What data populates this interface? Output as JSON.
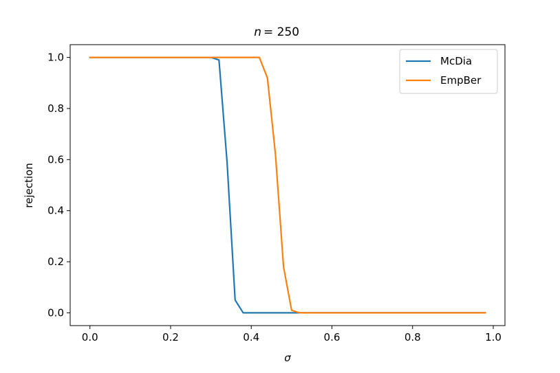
{
  "chart_data": {
    "type": "line",
    "title": "n = 250",
    "xlabel": "σ",
    "ylabel": "rejection",
    "xlim": [
      -0.049,
      1.029
    ],
    "ylim": [
      -0.05,
      1.05
    ],
    "xticks": [
      0.0,
      0.2,
      0.4,
      0.6,
      0.8,
      1.0
    ],
    "xtick_labels": [
      "0.0",
      "0.2",
      "0.4",
      "0.6",
      "0.8",
      "1.0"
    ],
    "yticks": [
      0.0,
      0.2,
      0.4,
      0.6,
      0.8,
      1.0
    ],
    "ytick_labels": [
      "0.0",
      "0.2",
      "0.4",
      "0.6",
      "0.8",
      "1.0"
    ],
    "grid": false,
    "legend_position": "top-right",
    "x": [
      0.0,
      0.02,
      0.04,
      0.06,
      0.08,
      0.1,
      0.12,
      0.14,
      0.16,
      0.18,
      0.2,
      0.22,
      0.24,
      0.26,
      0.28,
      0.3,
      0.32,
      0.34,
      0.36,
      0.38,
      0.4,
      0.42,
      0.44,
      0.46,
      0.48,
      0.5,
      0.52,
      0.54,
      0.56,
      0.58,
      0.6,
      0.62,
      0.64,
      0.66,
      0.68,
      0.7,
      0.72,
      0.74,
      0.76,
      0.78,
      0.8,
      0.82,
      0.84,
      0.86,
      0.88,
      0.9,
      0.92,
      0.94,
      0.96,
      0.98
    ],
    "series": [
      {
        "name": "McDia",
        "color": "#1f77b4",
        "values": [
          1.0,
          1.0,
          1.0,
          1.0,
          1.0,
          1.0,
          1.0,
          1.0,
          1.0,
          1.0,
          1.0,
          1.0,
          1.0,
          1.0,
          1.0,
          1.0,
          0.99,
          0.59,
          0.05,
          0.0,
          0.0,
          0.0,
          0.0,
          0.0,
          0.0,
          0.0,
          0.0,
          0.0,
          0.0,
          0.0,
          0.0,
          0.0,
          0.0,
          0.0,
          0.0,
          0.0,
          0.0,
          0.0,
          0.0,
          0.0,
          0.0,
          0.0,
          0.0,
          0.0,
          0.0,
          0.0,
          0.0,
          0.0,
          0.0,
          0.0
        ]
      },
      {
        "name": "EmpBer",
        "color": "#ff7f0e",
        "values": [
          1.0,
          1.0,
          1.0,
          1.0,
          1.0,
          1.0,
          1.0,
          1.0,
          1.0,
          1.0,
          1.0,
          1.0,
          1.0,
          1.0,
          1.0,
          1.0,
          1.0,
          1.0,
          1.0,
          1.0,
          1.0,
          1.0,
          0.92,
          0.62,
          0.18,
          0.01,
          0.0,
          0.0,
          0.0,
          0.0,
          0.0,
          0.0,
          0.0,
          0.0,
          0.0,
          0.0,
          0.0,
          0.0,
          0.0,
          0.0,
          0.0,
          0.0,
          0.0,
          0.0,
          0.0,
          0.0,
          0.0,
          0.0,
          0.0,
          0.0
        ]
      }
    ]
  }
}
